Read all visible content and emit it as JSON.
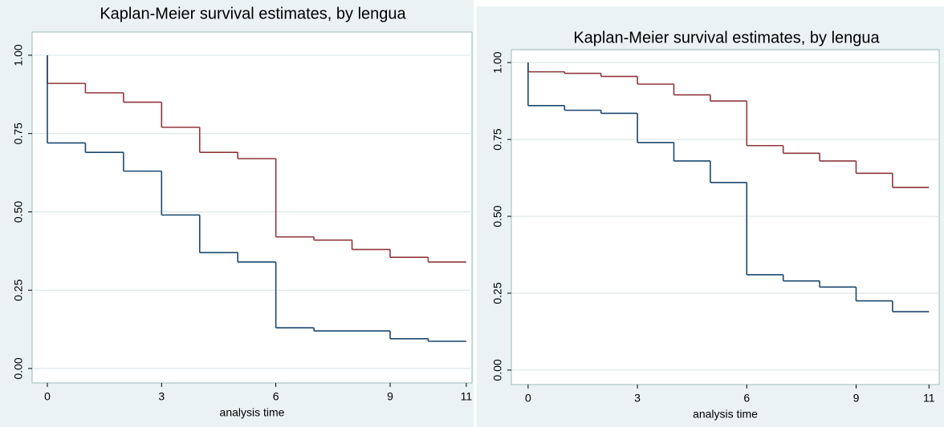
{
  "chart_data": [
    {
      "type": "step",
      "title": "Kaplan-Meier survival estimates, by lengua",
      "x_label": "analysis time",
      "x": [
        0,
        0,
        1,
        2,
        3,
        4,
        5,
        6,
        7,
        8,
        9,
        10,
        11
      ],
      "series": [
        {
          "color": "#90353b",
          "values": [
            1.0,
            0.91,
            0.88,
            0.85,
            0.77,
            0.69,
            0.67,
            0.42,
            0.41,
            0.38,
            0.355,
            0.34,
            0.34
          ]
        },
        {
          "color": "#1a476f",
          "values": [
            1.0,
            0.72,
            0.69,
            0.63,
            0.49,
            0.37,
            0.34,
            0.13,
            0.12,
            0.12,
            0.095,
            0.087,
            0.087
          ]
        }
      ],
      "xlim": [
        -0.4,
        11.15
      ],
      "ylim": [
        -0.046,
        1.074
      ],
      "xticks": [
        0,
        3,
        6,
        9,
        11
      ],
      "yticks": [
        {
          "value": 0,
          "label": "0.00"
        },
        {
          "value": 0.25,
          "label": "0.25"
        },
        {
          "value": 0.5,
          "label": "0.50"
        },
        {
          "value": 0.75,
          "label": "0.75"
        },
        {
          "value": 1,
          "label": "1.00"
        }
      ],
      "grid": true
    },
    {
      "type": "step",
      "title": "Kaplan-Meier survival estimates, by lengua",
      "x_label": "analysis time",
      "x": [
        0,
        0,
        1,
        2,
        3,
        4,
        5,
        6,
        7,
        8,
        9,
        10,
        11
      ],
      "series": [
        {
          "color": "#90353b",
          "values": [
            1.0,
            0.97,
            0.965,
            0.955,
            0.93,
            0.895,
            0.875,
            0.73,
            0.705,
            0.68,
            0.64,
            0.594,
            0.594
          ]
        },
        {
          "color": "#1a476f",
          "values": [
            1.0,
            0.86,
            0.845,
            0.835,
            0.74,
            0.68,
            0.61,
            0.31,
            0.29,
            0.27,
            0.225,
            0.19,
            0.19
          ]
        }
      ],
      "xlim": [
        -0.46,
        11.28
      ],
      "ylim": [
        -0.047,
        1.042
      ],
      "xticks": [
        0,
        3,
        6,
        9,
        11
      ],
      "yticks": [
        {
          "value": 0,
          "label": "0.00"
        },
        {
          "value": 0.25,
          "label": "0.25"
        },
        {
          "value": 0.5,
          "label": "0.50"
        },
        {
          "value": 0.75,
          "label": "0.75"
        },
        {
          "value": 1,
          "label": "1.00"
        }
      ],
      "grid": true
    }
  ]
}
